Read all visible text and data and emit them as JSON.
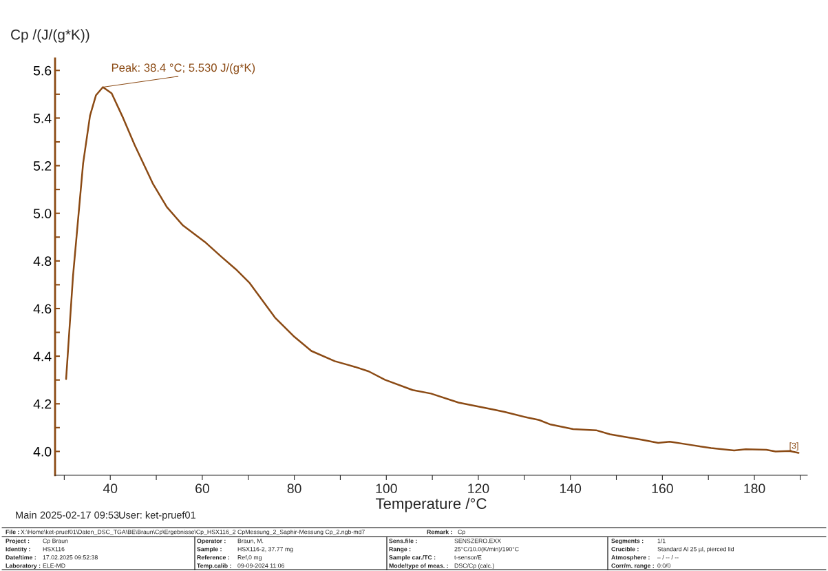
{
  "chart_data": {
    "type": "line",
    "xlabel": "Temperature /°C",
    "ylabel": "Cp /(J/(g*K))",
    "xlim": [
      28,
      191.5
    ],
    "xticks": [
      {
        "value": 30,
        "label": null
      },
      40,
      {
        "value": 50,
        "label": null
      },
      60,
      {
        "value": 70,
        "label": null
      },
      80,
      {
        "value": 90,
        "label": null
      },
      100,
      {
        "value": 110,
        "label": null
      },
      120,
      {
        "value": 130,
        "label": null
      },
      140,
      {
        "value": 150,
        "label": null
      },
      160,
      {
        "value": 170,
        "label": null
      },
      180,
      {
        "value": 190,
        "label": null
      }
    ],
    "ylim": [
      3.9,
      5.65
    ],
    "yticks": [
      {
        "value": 4.0,
        "label": "4.0"
      },
      {
        "value": 4.1,
        "label": null
      },
      {
        "value": 4.2,
        "label": "4.2"
      },
      {
        "value": 4.3,
        "label": null
      },
      {
        "value": 4.4,
        "label": "4.4"
      },
      {
        "value": 4.5,
        "label": null
      },
      {
        "value": 4.6,
        "label": "4.6"
      },
      {
        "value": 4.7,
        "label": null
      },
      {
        "value": 4.8,
        "label": "4.8"
      },
      {
        "value": 4.9,
        "label": null
      },
      {
        "value": 5.0,
        "label": "5.0"
      },
      {
        "value": 5.1,
        "label": null
      },
      {
        "value": 5.2,
        "label": "5.2"
      },
      {
        "value": 5.3,
        "label": null
      },
      {
        "value": 5.4,
        "label": "5.4"
      },
      {
        "value": 5.5,
        "label": null
      },
      {
        "value": 5.6,
        "label": "5.6"
      }
    ],
    "grid": false,
    "legend": false,
    "marker": "none",
    "line_style": "solid",
    "series": [
      {
        "color": "#8b4a14",
        "x": [
          30.4,
          31.9,
          34.1,
          35.6,
          36.9,
          38.4,
          40.3,
          42.8,
          45.3,
          49.3,
          52.3,
          55.8,
          60.8,
          64.0,
          67.3,
          70.3,
          75.8,
          79.8,
          83.7,
          88.8,
          93.2,
          96.2,
          99.7,
          105.7,
          109.7,
          115.7,
          123.2,
          125.7,
          130.7,
          133.2,
          135.7,
          140.6,
          145.6,
          148.6,
          151.6,
          155.6,
          159.1,
          161.6,
          165.6,
          170.6,
          175.6,
          178.1,
          182.6,
          184.6,
          187.6,
          189.6
        ],
        "values": [
          4.304,
          4.736,
          5.21,
          5.41,
          5.496,
          5.53,
          5.504,
          5.4,
          5.287,
          5.123,
          5.026,
          4.949,
          4.876,
          4.82,
          4.765,
          4.707,
          4.562,
          4.485,
          4.422,
          4.379,
          4.355,
          4.336,
          4.301,
          4.258,
          4.243,
          4.205,
          4.176,
          4.166,
          4.142,
          4.132,
          4.113,
          4.094,
          4.089,
          4.072,
          4.062,
          4.049,
          4.036,
          4.041,
          4.029,
          4.014,
          4.004,
          4.009,
          4.007,
          4.0,
          4.002,
          3.994
        ]
      }
    ],
    "annotations": [
      {
        "text": "Peak: 38.4 °C; 5.530 J/(g*K)",
        "x": 38.4,
        "y": 5.53
      },
      {
        "text": "[3]",
        "x": 188.6,
        "y": 4.0
      },
      "Main",
      "2025-02-17 09:53",
      "User: ket-pruef01",
      "File :",
      "X:\\Home\\ket-pruef01\\Daten_DSC_TGA\\BE\\Braun\\Cp\\Ergebnisse\\Cp_HSX116_2 CpMessung_2_Saphir-Messung Cp_2.ngb-md7",
      "Remark :",
      "Cp",
      "Project :",
      "Cp Braun",
      "Identity :",
      "HSX116",
      "Date/time :",
      "17.02.2025 09:52:38",
      "Laboratory :",
      "ELE-MD",
      "Operator :",
      "Braun, M.",
      "Sample :",
      "HSX116-2, 37.77 mg",
      "Reference :",
      "Ref,0 mg",
      "Temp.calib :",
      "09-09-2024 11:06",
      "Sens.file :",
      "SENSZERO.EXX",
      "Range :",
      "25°C/10.0(K/min)/190°C",
      "Sample car./TC :",
      "t-sensor/E",
      "Mode/type of meas. :",
      "DSC/Cp (calc.)",
      "Segments :",
      "1/1",
      "Crucible :",
      "Standard Al 25 µl, pierced lid",
      "Atmosphere :",
      "– / -- / --",
      "Corr/m. range :",
      "0:0/0"
    ]
  }
}
